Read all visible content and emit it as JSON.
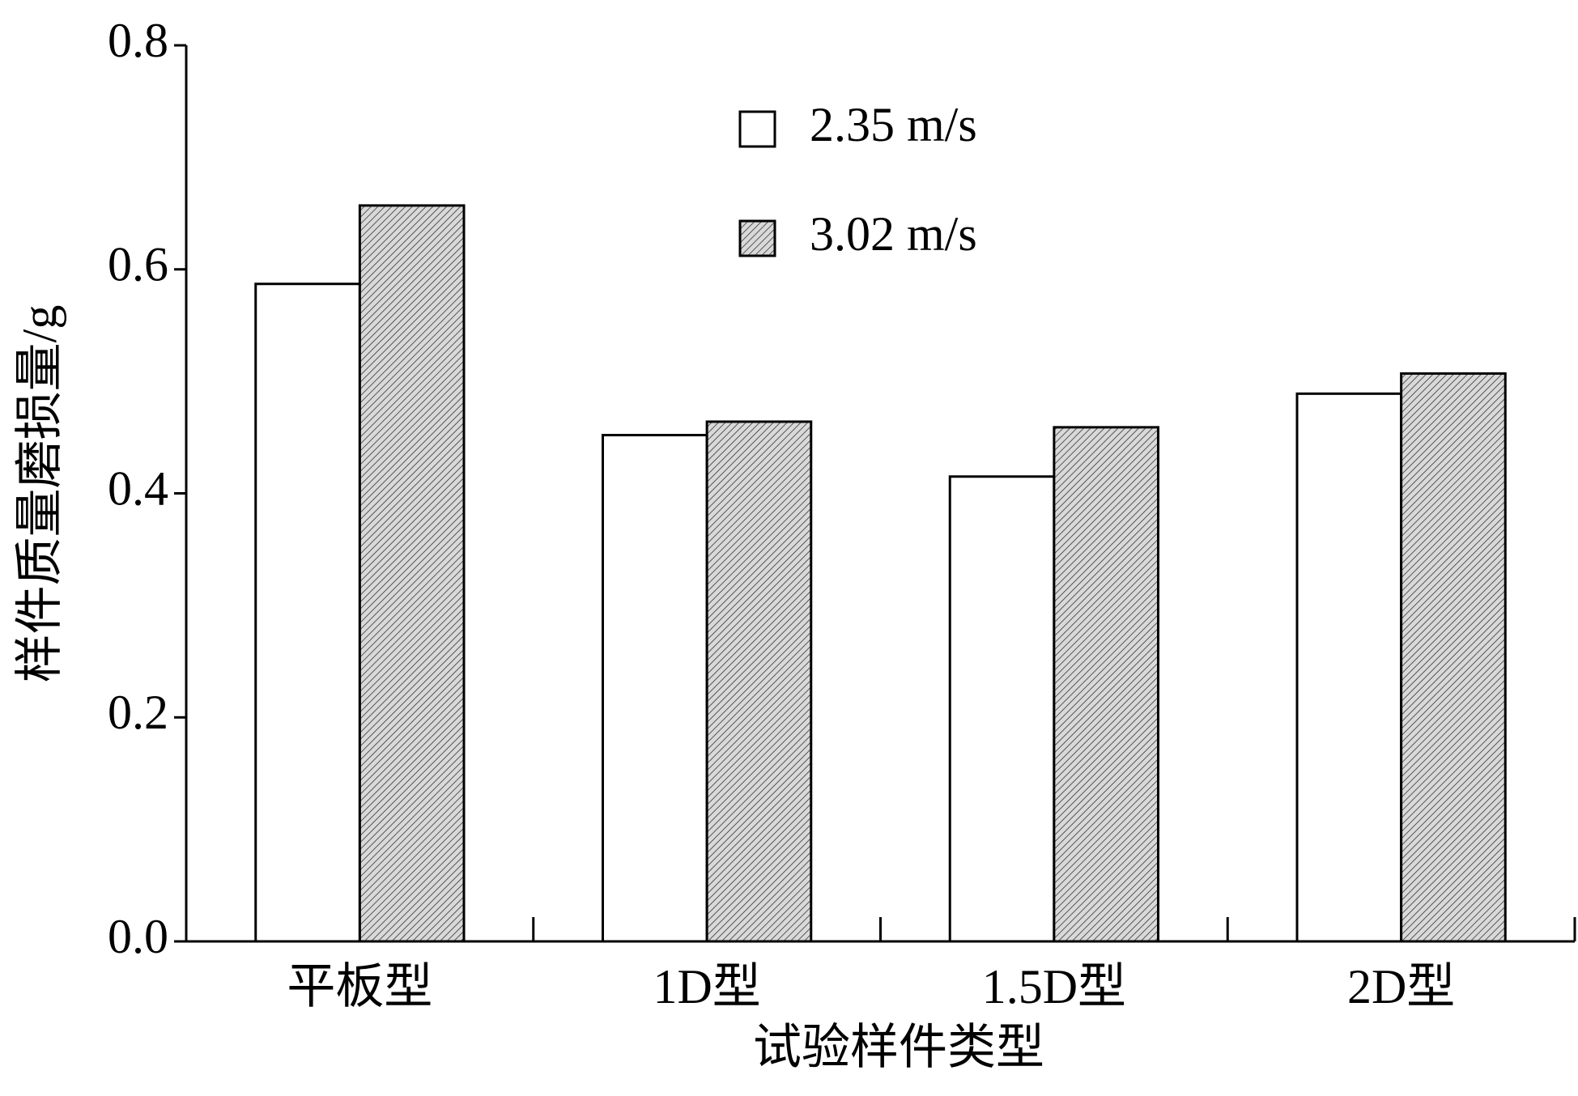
{
  "chart_data": {
    "type": "bar",
    "categories": [
      "平板型",
      "1D型",
      "1.5D型",
      "2D型"
    ],
    "series": [
      {
        "name": "2.35 m/s",
        "color": "#ffffff",
        "values": [
          0.587,
          0.452,
          0.415,
          0.489
        ]
      },
      {
        "name": "3.02 m/s",
        "color": "#bdbdbd",
        "pattern": "hatch",
        "values": [
          0.657,
          0.464,
          0.459,
          0.507
        ]
      }
    ],
    "x_label": "试验样件类型",
    "y_label": "样件质量磨损量/g",
    "ylim": [
      0,
      0.8
    ],
    "yticks": [
      {
        "value": 0,
        "label": "0.0"
      },
      0.2,
      0.4,
      0.6,
      0.8
    ],
    "grid": false,
    "legend_position": "top"
  }
}
